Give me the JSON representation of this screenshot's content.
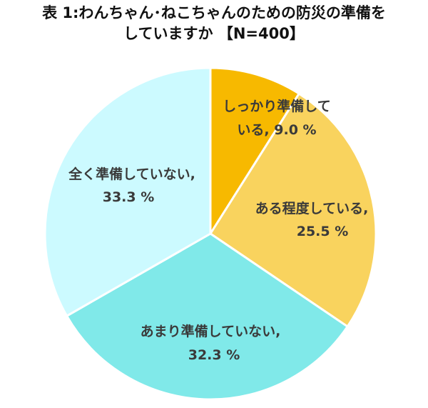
{
  "chart_data": {
    "type": "pie",
    "title_line1": "表 1:わんちゃん･ねこちゃんのための防災の準備を",
    "title_line2": "していますか 【N=400】",
    "categories": [
      "しっかり準備している",
      "ある程度している",
      "あまり準備していない",
      "全く準備していない"
    ],
    "values": [
      9.0,
      25.5,
      32.3,
      33.3
    ],
    "unit": "%",
    "labels": [
      [
        "しっかり準備して",
        "いる, 9.0 %"
      ],
      [
        "ある程度している,",
        "25.5 %"
      ],
      [
        "あまり準備していない,",
        "32.3 %"
      ],
      [
        "全く準備していない,",
        "33.3 %"
      ]
    ],
    "colors": [
      "#F7B900",
      "#F9D35E",
      "#80E9E9",
      "#CCFAFF"
    ],
    "start_angle": "12 o'clock",
    "direction": "clockwise"
  }
}
